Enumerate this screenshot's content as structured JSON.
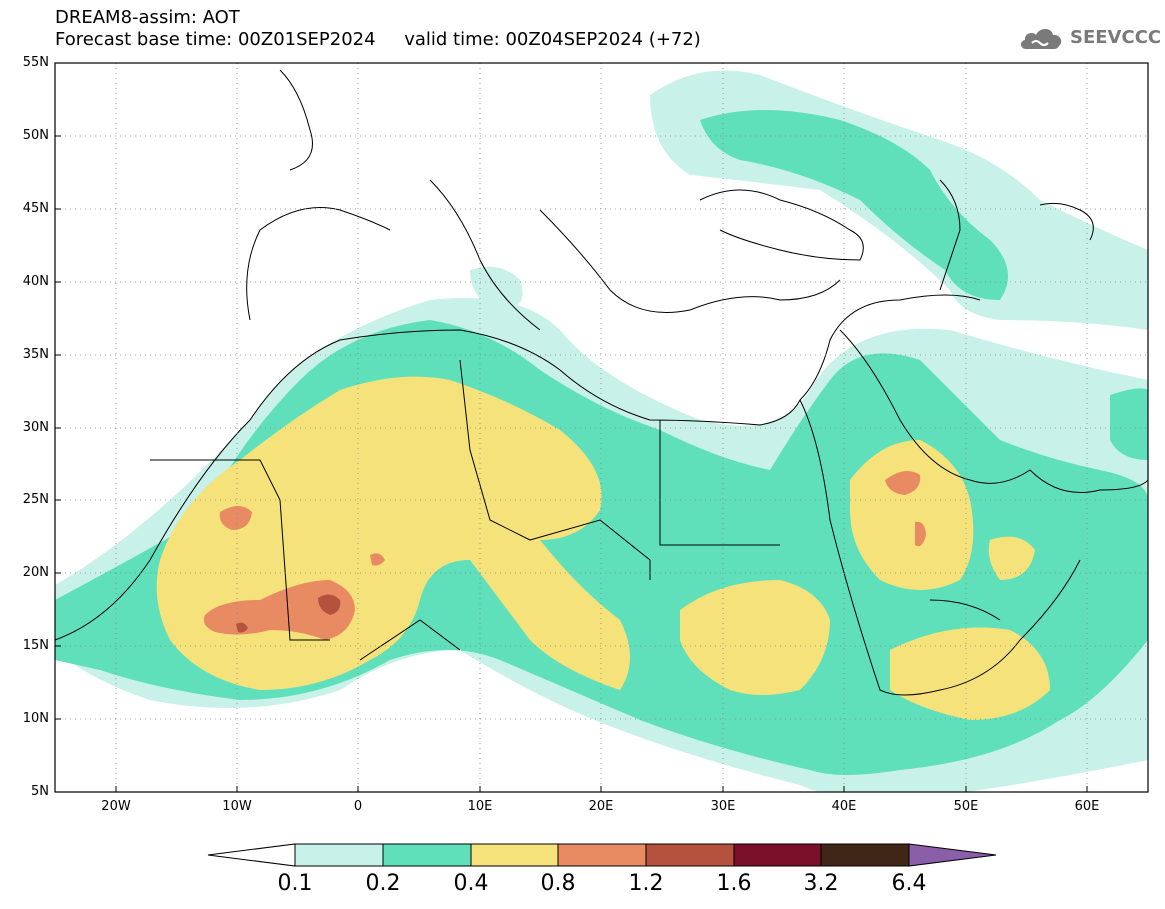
{
  "header": {
    "title_line1": "DREAM8-assim: AOT",
    "forecast_base": "Forecast base time: 00Z01SEP2024",
    "valid_time": "valid time: 00Z04SEP2024 (+72)",
    "logo_text": "SEEVCCC",
    "logo_icon": "cloud-icon"
  },
  "map": {
    "variable": "AOT",
    "lat_range": [
      5,
      55
    ],
    "lon_range": [
      -25,
      65
    ],
    "lat_ticks": [
      "5N",
      "10N",
      "15N",
      "20N",
      "25N",
      "30N",
      "35N",
      "40N",
      "45N",
      "50N",
      "55N"
    ],
    "lon_ticks": [
      "20W",
      "10W",
      "0",
      "10E",
      "20E",
      "30E",
      "40E",
      "50E",
      "60E"
    ],
    "grid": "dotted"
  },
  "colorbar": {
    "levels": [
      "0.1",
      "0.2",
      "0.4",
      "0.8",
      "1.2",
      "1.6",
      "3.2",
      "6.4"
    ],
    "colors": [
      "#c8f1e9",
      "#5fe0bb",
      "#f5e27a",
      "#e88a62",
      "#b5523e",
      "#7a0f2a",
      "#3f2616"
    ],
    "under_color": "#ffffff",
    "over_color": "#8a5fa8"
  }
}
